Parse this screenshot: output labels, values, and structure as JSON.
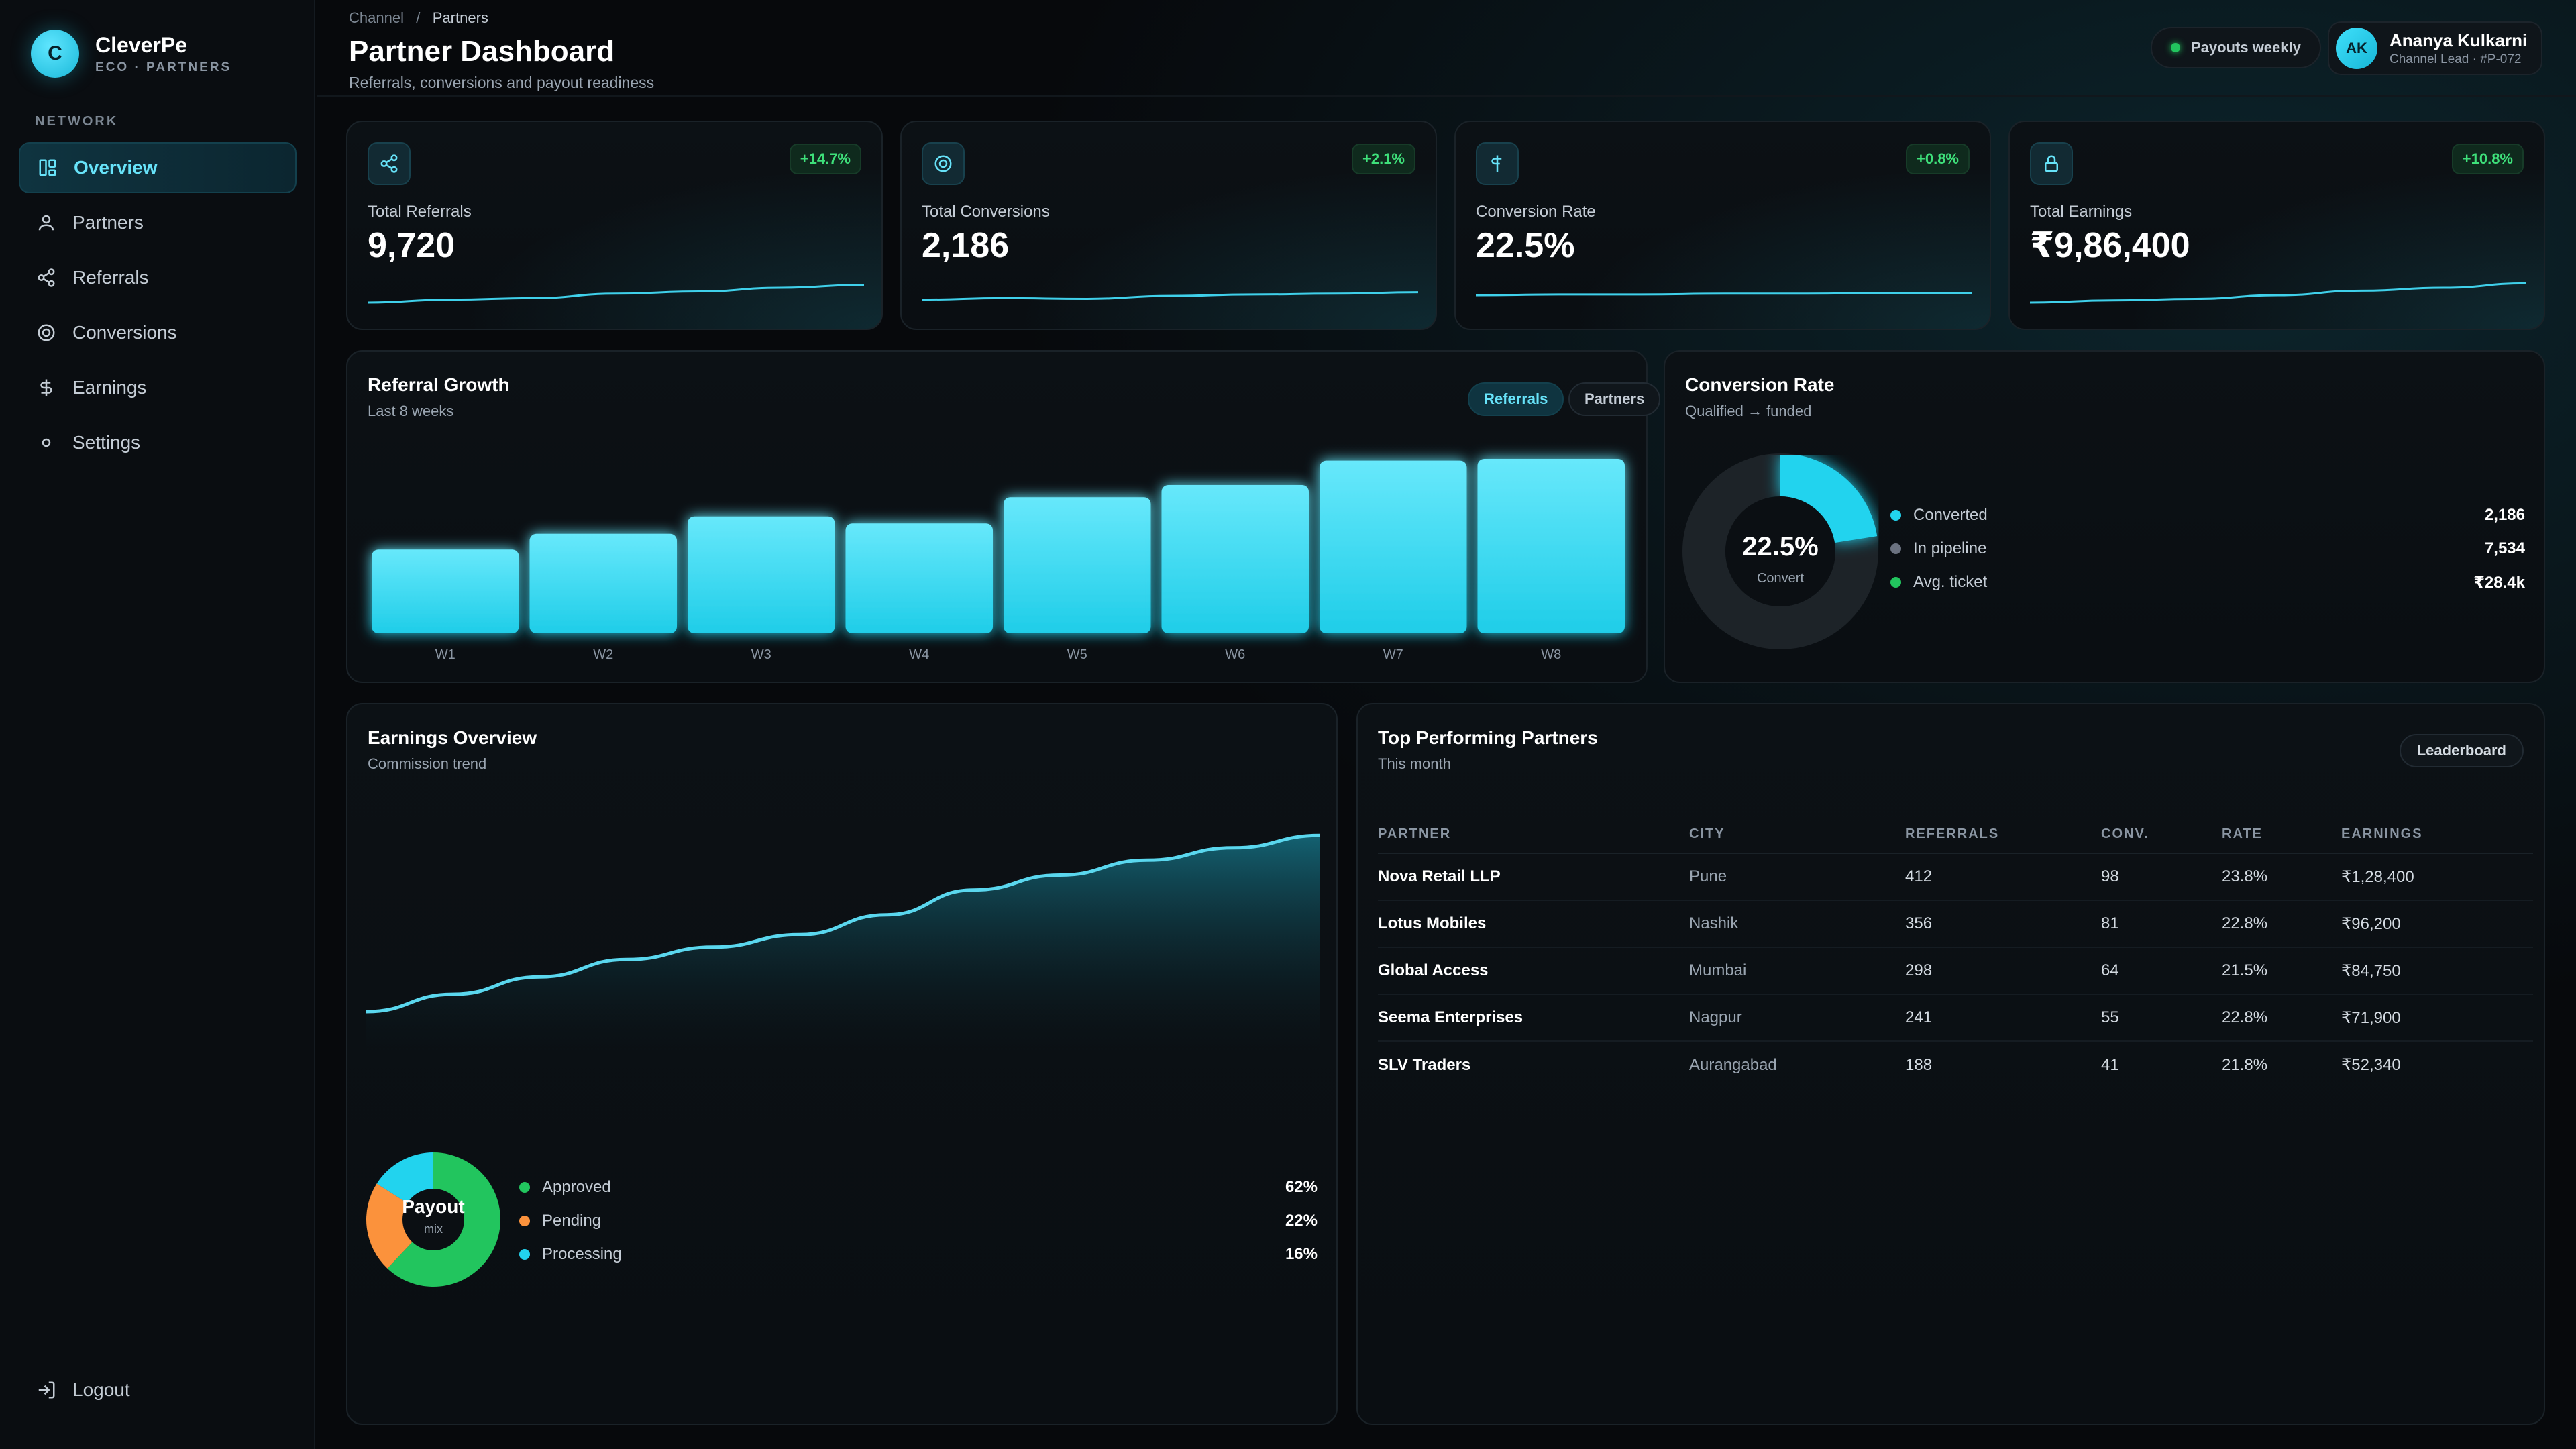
{
  "brand": {
    "logo_letter": "C",
    "name": "CleverPe",
    "sub": "ECO · PARTNERS"
  },
  "sidebar": {
    "section": "NETWORK",
    "items": [
      {
        "label": "Overview",
        "icon": "layout-icon",
        "active": true
      },
      {
        "label": "Partners",
        "icon": "user-icon"
      },
      {
        "label": "Referrals",
        "icon": "share-icon"
      },
      {
        "label": "Conversions",
        "icon": "target-icon"
      },
      {
        "label": "Earnings",
        "icon": "currency-icon"
      },
      {
        "label": "Settings",
        "icon": "dot-icon"
      }
    ],
    "logout": "Logout"
  },
  "header": {
    "breadcrumb": [
      "Channel",
      "Partners"
    ],
    "title": "Partner Dashboard",
    "subtitle": "Referrals, conversions and payout readiness",
    "status_pill": "Payouts weekly",
    "user": {
      "initials": "AK",
      "name": "Ananya Kulkarni",
      "role": "Channel Lead · #P-072"
    }
  },
  "kpis": [
    {
      "label": "Total Referrals",
      "value": "9,720",
      "delta": "+14.7%",
      "icon": "share-icon",
      "spark": [
        10,
        14,
        16,
        22,
        25,
        30,
        34
      ]
    },
    {
      "label": "Total Conversions",
      "value": "2,186",
      "delta": "+2.1%",
      "icon": "target-icon",
      "spark": [
        14,
        16,
        15,
        19,
        21,
        22,
        24
      ]
    },
    {
      "label": "Conversion Rate",
      "value": "22.5%",
      "delta": "+0.8%",
      "icon": "currency-icon",
      "spark": [
        20,
        21,
        21,
        22,
        22,
        23,
        23
      ]
    },
    {
      "label": "Total Earnings",
      "value": "₹9,86,400",
      "delta": "+10.8%",
      "icon": "lock-icon",
      "spark": [
        10,
        13,
        15,
        20,
        26,
        30,
        36
      ]
    }
  ],
  "referral_growth": {
    "title": "Referral Growth",
    "subtitle": "Last 8 weeks",
    "toggle": [
      "Referrals",
      "Partners"
    ]
  },
  "conversion_rate": {
    "title": "Conversion Rate",
    "subtitle": "Qualified → funded",
    "center_value": "22.5%",
    "center_label": "Convert",
    "legend": [
      {
        "label": "Converted",
        "value": "2,186",
        "color": "#22d3ee"
      },
      {
        "label": "In pipeline",
        "value": "7,534",
        "color": "#6b7280"
      },
      {
        "label": "Avg. ticket",
        "value": "₹28.4k",
        "color": "#22c55e"
      }
    ]
  },
  "earnings": {
    "title": "Earnings Overview",
    "subtitle": "Commission trend",
    "payout_center": "Payout",
    "payout_sub": "mix",
    "legend": [
      {
        "label": "Approved",
        "value": "62%",
        "color": "#22c55e"
      },
      {
        "label": "Pending",
        "value": "22%",
        "color": "#fb923c"
      },
      {
        "label": "Processing",
        "value": "16%",
        "color": "#22d3ee"
      }
    ]
  },
  "top_partners": {
    "title": "Top Performing Partners",
    "subtitle": "This month",
    "button": "Leaderboard",
    "columns": [
      "PARTNER",
      "CITY",
      "REFERRALS",
      "CONV.",
      "RATE",
      "EARNINGS"
    ],
    "rows": [
      [
        "Nova Retail LLP",
        "Pune",
        "412",
        "98",
        "23.8%",
        "₹1,28,400"
      ],
      [
        "Lotus Mobiles",
        "Nashik",
        "356",
        "81",
        "22.8%",
        "₹96,200"
      ],
      [
        "Global Access",
        "Mumbai",
        "298",
        "64",
        "21.5%",
        "₹84,750"
      ],
      [
        "Seema Enterprises",
        "Nagpur",
        "241",
        "55",
        "22.8%",
        "₹71,900"
      ],
      [
        "SLV Traders",
        "Aurangabad",
        "188",
        "41",
        "21.8%",
        "₹52,340"
      ]
    ]
  },
  "chart_data": [
    {
      "type": "bar",
      "title": "Referral Growth",
      "categories": [
        "W1",
        "W2",
        "W3",
        "W4",
        "W5",
        "W6",
        "W7",
        "W8"
      ],
      "values": [
        48,
        57,
        67,
        63,
        78,
        85,
        99,
        100
      ],
      "ylim": [
        0,
        100
      ],
      "grid": false
    },
    {
      "type": "pie",
      "title": "Conversion Rate",
      "labels": [
        "Converted",
        "In pipeline"
      ],
      "values": [
        22.5,
        77.5
      ]
    },
    {
      "type": "area",
      "title": "Earnings Overview",
      "x": [
        0,
        1,
        2,
        3,
        4,
        5,
        6,
        7,
        8,
        9,
        10,
        11
      ],
      "values": [
        20,
        27,
        34,
        41,
        46,
        51,
        59,
        69,
        75,
        81,
        86,
        91
      ],
      "ylim": [
        0,
        100
      ],
      "grid": false
    },
    {
      "type": "pie",
      "title": "Payout mix",
      "labels": [
        "Approved",
        "Pending",
        "Processing"
      ],
      "values": [
        62,
        22,
        16
      ]
    }
  ],
  "colors": {
    "accent": "#22d3ee",
    "positive": "#3ee07a",
    "background": "#07090c"
  }
}
